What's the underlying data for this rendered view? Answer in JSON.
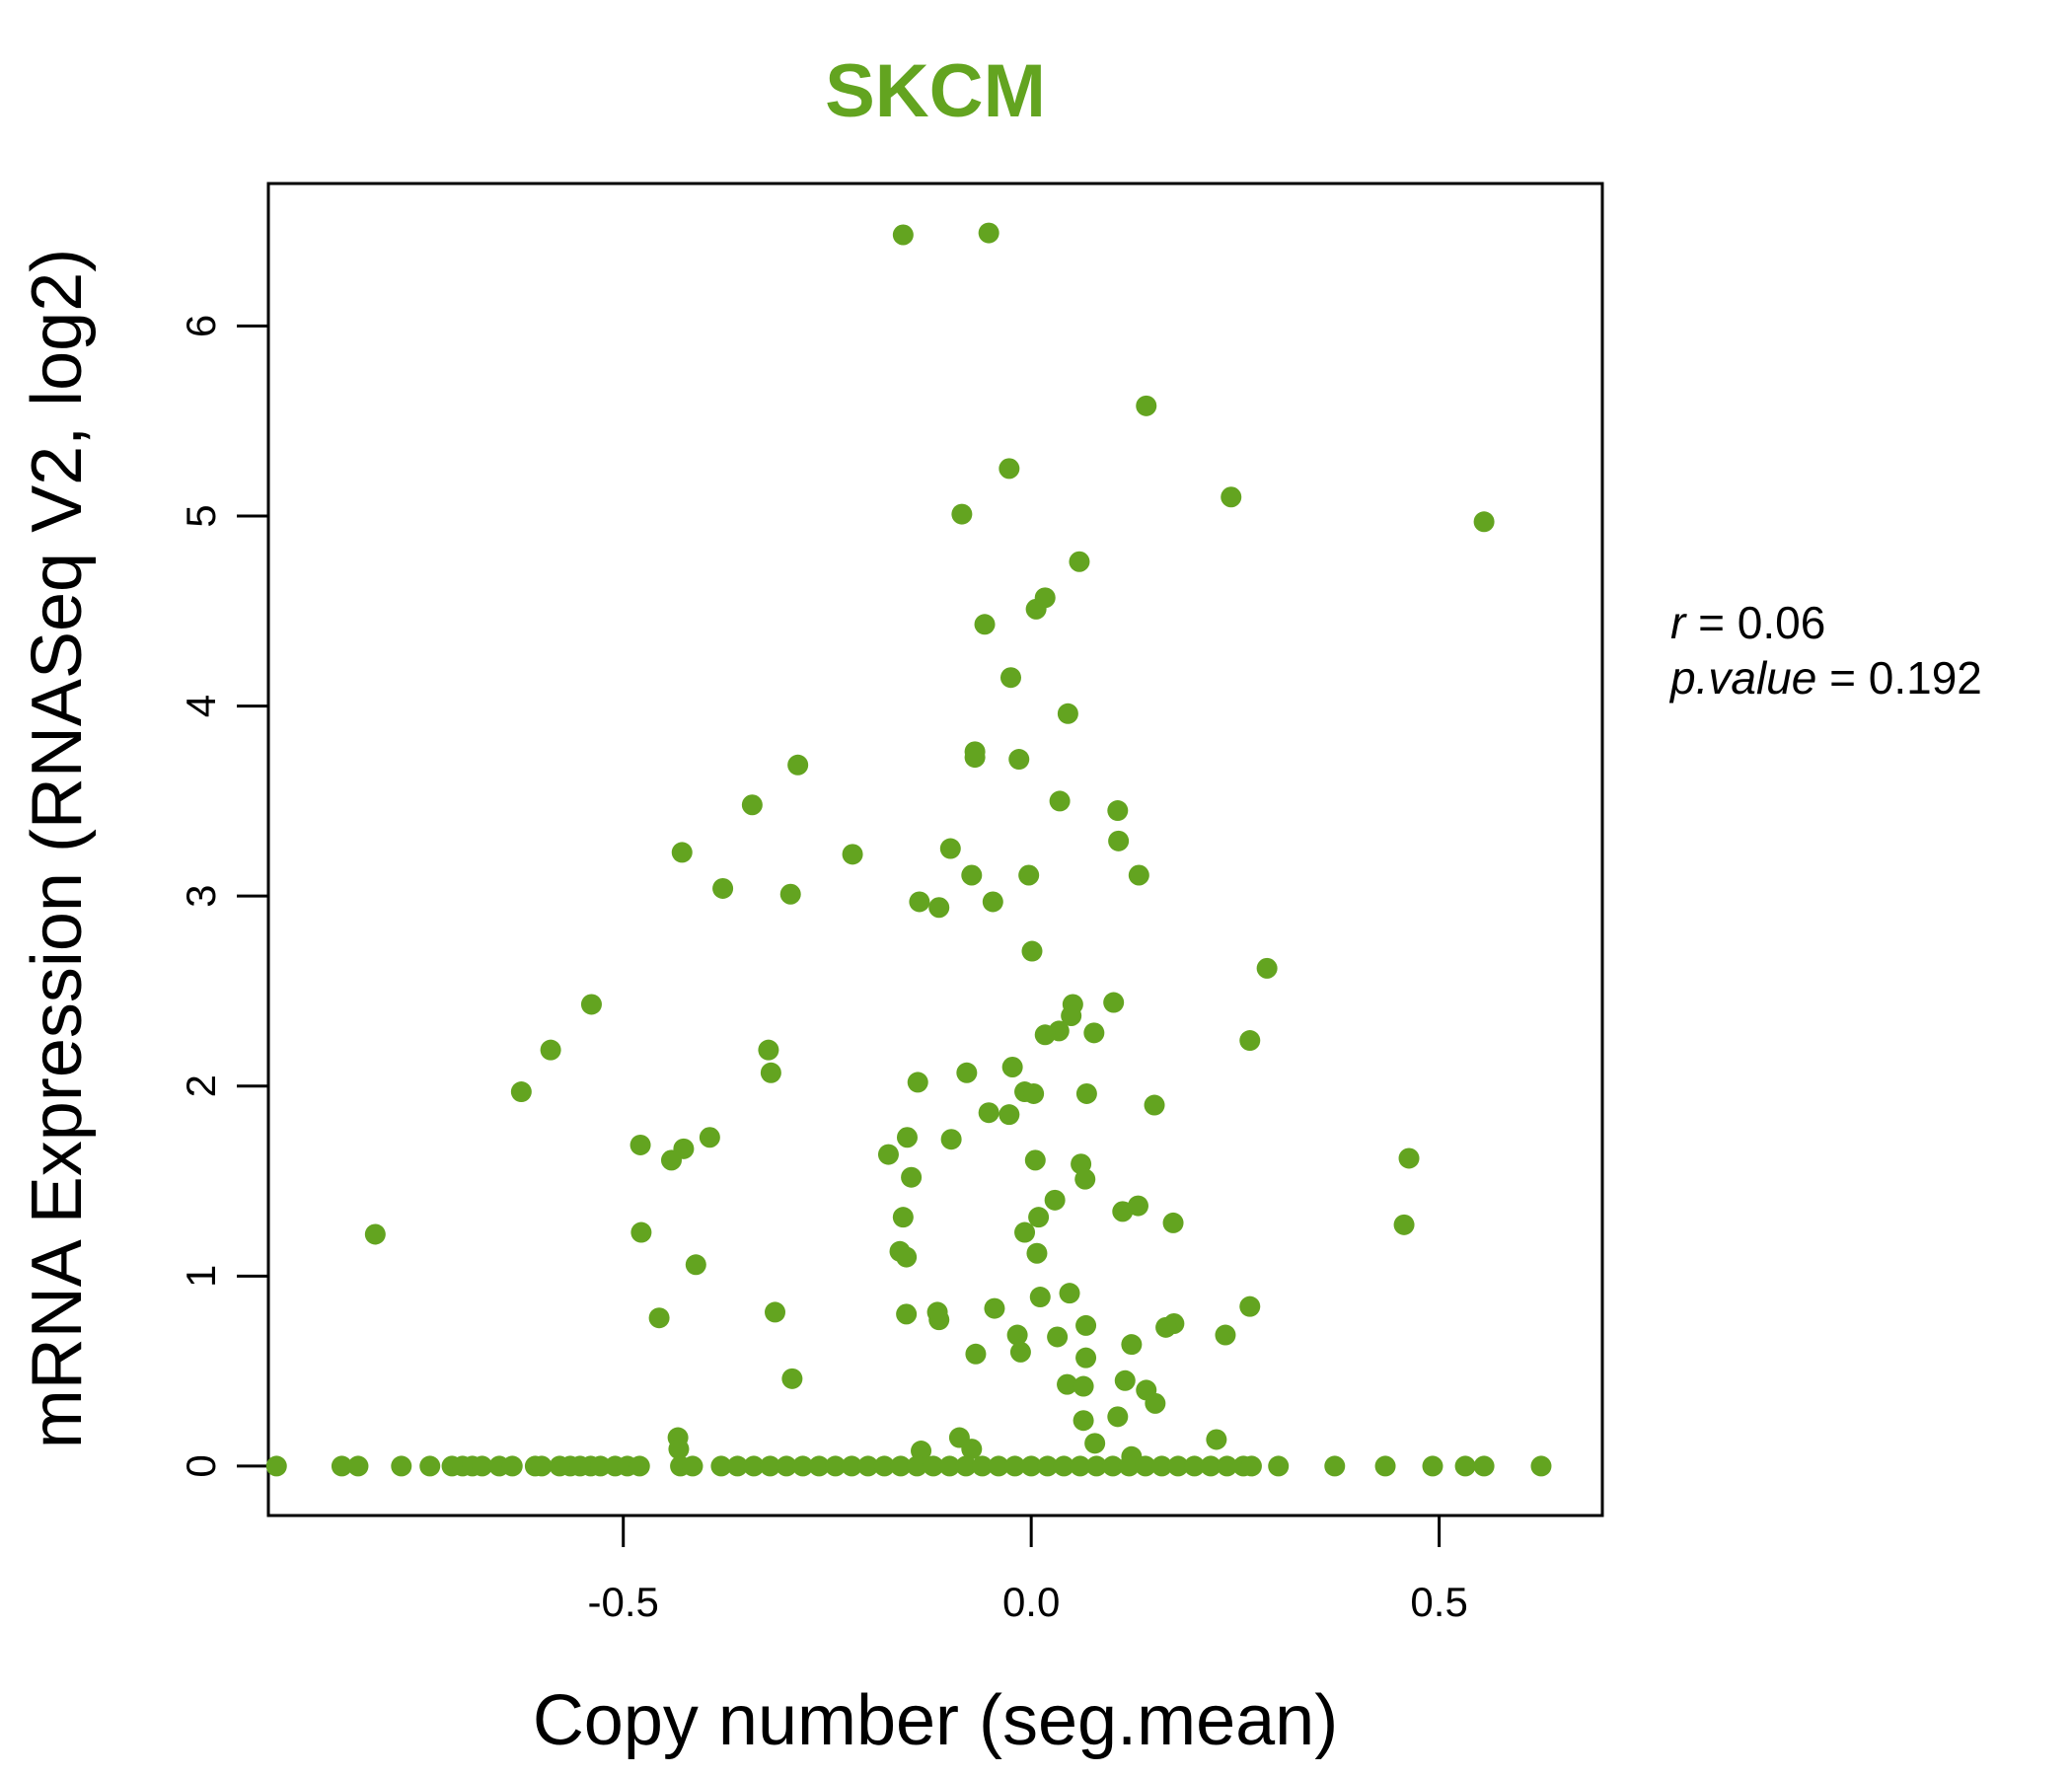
{
  "chart_data": {
    "type": "scatter",
    "title": "SKCM",
    "xlabel": "Copy number (seg.mean)",
    "ylabel": "mRNA Expression (RNASeq V2, log2)",
    "xlim": [
      -0.935,
      0.7
    ],
    "ylim": [
      -0.26,
      6.75
    ],
    "x_ticks": [
      -0.5,
      0.0,
      0.5
    ],
    "x_tick_labels": [
      "-0.5",
      "0.0",
      "0.5"
    ],
    "y_ticks": [
      0,
      1,
      2,
      3,
      4,
      5,
      6
    ],
    "y_tick_labels": [
      "0",
      "1",
      "2",
      "3",
      "4",
      "5",
      "6"
    ],
    "point_color": "#63a420",
    "title_color": "#63a420",
    "grid": false,
    "annotation": {
      "r_label": "r",
      "r_value": "0.06",
      "p_label": "p.value",
      "p_value": "0.192"
    },
    "series": [
      {
        "points": [
          [
            -0.157,
            6.48
          ],
          [
            -0.052,
            6.49
          ],
          [
            0.141,
            5.58
          ],
          [
            -0.027,
            5.25
          ],
          [
            -0.085,
            5.01
          ],
          [
            0.245,
            5.1
          ],
          [
            0.555,
            4.97
          ],
          [
            0.059,
            4.76
          ],
          [
            0.017,
            4.57
          ],
          [
            0.006,
            4.51
          ],
          [
            -0.057,
            4.43
          ],
          [
            -0.025,
            4.15
          ],
          [
            0.045,
            3.96
          ],
          [
            -0.069,
            3.76
          ],
          [
            -0.069,
            3.73
          ],
          [
            -0.015,
            3.72
          ],
          [
            -0.286,
            3.69
          ],
          [
            -0.342,
            3.48
          ],
          [
            0.035,
            3.5
          ],
          [
            0.106,
            3.45
          ],
          [
            -0.428,
            3.23
          ],
          [
            -0.219,
            3.22
          ],
          [
            -0.099,
            3.25
          ],
          [
            0.107,
            3.29
          ],
          [
            -0.073,
            3.11
          ],
          [
            -0.003,
            3.11
          ],
          [
            0.132,
            3.11
          ],
          [
            -0.378,
            3.04
          ],
          [
            -0.295,
            3.01
          ],
          [
            -0.137,
            2.97
          ],
          [
            -0.113,
            2.94
          ],
          [
            -0.047,
            2.97
          ],
          [
            0.001,
            2.71
          ],
          [
            0.289,
            2.62
          ],
          [
            -0.539,
            2.43
          ],
          [
            0.051,
            2.43
          ],
          [
            0.101,
            2.44
          ],
          [
            0.049,
            2.37
          ],
          [
            0.034,
            2.29
          ],
          [
            0.017,
            2.27
          ],
          [
            0.077,
            2.28
          ],
          [
            0.268,
            2.24
          ],
          [
            -0.589,
            2.19
          ],
          [
            -0.322,
            2.19
          ],
          [
            -0.023,
            2.1
          ],
          [
            -0.079,
            2.07
          ],
          [
            -0.319,
            2.07
          ],
          [
            -0.139,
            2.02
          ],
          [
            -0.008,
            1.97
          ],
          [
            0.003,
            1.96
          ],
          [
            0.068,
            1.96
          ],
          [
            -0.625,
            1.97
          ],
          [
            0.151,
            1.9
          ],
          [
            -0.052,
            1.86
          ],
          [
            -0.027,
            1.85
          ],
          [
            -0.394,
            1.73
          ],
          [
            -0.152,
            1.73
          ],
          [
            -0.098,
            1.72
          ],
          [
            -0.479,
            1.69
          ],
          [
            -0.426,
            1.67
          ],
          [
            -0.441,
            1.61
          ],
          [
            -0.175,
            1.64
          ],
          [
            0.005,
            1.61
          ],
          [
            0.061,
            1.59
          ],
          [
            0.463,
            1.62
          ],
          [
            -0.147,
            1.52
          ],
          [
            0.066,
            1.51
          ],
          [
            0.029,
            1.4
          ],
          [
            0.112,
            1.34
          ],
          [
            0.131,
            1.37
          ],
          [
            -0.157,
            1.31
          ],
          [
            0.009,
            1.31
          ],
          [
            0.174,
            1.28
          ],
          [
            0.457,
            1.27
          ],
          [
            -0.478,
            1.23
          ],
          [
            -0.008,
            1.23
          ],
          [
            -0.804,
            1.22
          ],
          [
            -0.161,
            1.13
          ],
          [
            -0.153,
            1.1
          ],
          [
            0.007,
            1.12
          ],
          [
            -0.411,
            1.06
          ],
          [
            0.047,
            0.91
          ],
          [
            0.011,
            0.89
          ],
          [
            -0.115,
            0.81
          ],
          [
            -0.314,
            0.81
          ],
          [
            -0.113,
            0.77
          ],
          [
            -0.153,
            0.8
          ],
          [
            -0.045,
            0.83
          ],
          [
            -0.456,
            0.78
          ],
          [
            0.268,
            0.84
          ],
          [
            0.067,
            0.74
          ],
          [
            0.175,
            0.75
          ],
          [
            0.165,
            0.73
          ],
          [
            -0.017,
            0.69
          ],
          [
            0.032,
            0.68
          ],
          [
            0.238,
            0.69
          ],
          [
            0.123,
            0.64
          ],
          [
            -0.068,
            0.59
          ],
          [
            -0.013,
            0.6
          ],
          [
            0.067,
            0.57
          ],
          [
            -0.293,
            0.46
          ],
          [
            0.044,
            0.43
          ],
          [
            0.064,
            0.42
          ],
          [
            0.115,
            0.45
          ],
          [
            0.141,
            0.4
          ],
          [
            0.152,
            0.33
          ],
          [
            0.064,
            0.24
          ],
          [
            0.106,
            0.26
          ],
          [
            0.078,
            0.12
          ],
          [
            0.227,
            0.14
          ],
          [
            -0.433,
            0.15
          ],
          [
            -0.432,
            0.09
          ],
          [
            -0.088,
            0.15
          ],
          [
            -0.073,
            0.09
          ],
          [
            -0.135,
            0.08
          ],
          [
            0.123,
            0.05
          ],
          [
            -0.925,
            0.0
          ],
          [
            -0.845,
            0.0
          ],
          [
            -0.825,
            0.0
          ],
          [
            -0.772,
            0.0
          ],
          [
            -0.737,
            0.0
          ],
          [
            -0.71,
            0.0
          ],
          [
            -0.697,
            0.0
          ],
          [
            -0.685,
            0.0
          ],
          [
            -0.673,
            0.0
          ],
          [
            -0.652,
            0.0
          ],
          [
            -0.636,
            0.0
          ],
          [
            -0.608,
            0.0
          ],
          [
            -0.6,
            0.0
          ],
          [
            -0.578,
            0.0
          ],
          [
            -0.565,
            0.0
          ],
          [
            -0.553,
            0.0
          ],
          [
            -0.54,
            0.0
          ],
          [
            -0.528,
            0.0
          ],
          [
            -0.51,
            0.0
          ],
          [
            -0.495,
            0.0
          ],
          [
            -0.48,
            0.0
          ],
          [
            -0.43,
            0.0
          ],
          [
            -0.415,
            0.0
          ],
          [
            -0.38,
            0.0
          ],
          [
            -0.36,
            0.0
          ],
          [
            -0.34,
            0.0
          ],
          [
            -0.32,
            0.0
          ],
          [
            -0.3,
            0.0
          ],
          [
            -0.28,
            0.0
          ],
          [
            -0.26,
            0.0
          ],
          [
            -0.24,
            0.0
          ],
          [
            -0.22,
            0.0
          ],
          [
            -0.2,
            0.0
          ],
          [
            -0.18,
            0.0
          ],
          [
            -0.16,
            0.0
          ],
          [
            -0.14,
            0.0
          ],
          [
            -0.12,
            0.0
          ],
          [
            -0.1,
            0.0
          ],
          [
            -0.08,
            0.0
          ],
          [
            -0.06,
            0.0
          ],
          [
            -0.04,
            0.0
          ],
          [
            -0.02,
            0.0
          ],
          [
            0.0,
            0.0
          ],
          [
            0.02,
            0.0
          ],
          [
            0.04,
            0.0
          ],
          [
            0.06,
            0.0
          ],
          [
            0.08,
            0.0
          ],
          [
            0.1,
            0.0
          ],
          [
            0.12,
            0.0
          ],
          [
            0.14,
            0.0
          ],
          [
            0.16,
            0.0
          ],
          [
            0.18,
            0.0
          ],
          [
            0.2,
            0.0
          ],
          [
            0.22,
            0.0
          ],
          [
            0.24,
            0.0
          ],
          [
            0.26,
            0.0
          ],
          [
            0.27,
            0.0
          ],
          [
            0.303,
            0.0
          ],
          [
            0.372,
            0.0
          ],
          [
            0.434,
            0.0
          ],
          [
            0.492,
            0.0
          ],
          [
            0.532,
            0.0
          ],
          [
            0.555,
            0.0
          ],
          [
            0.625,
            0.0
          ]
        ]
      }
    ]
  }
}
